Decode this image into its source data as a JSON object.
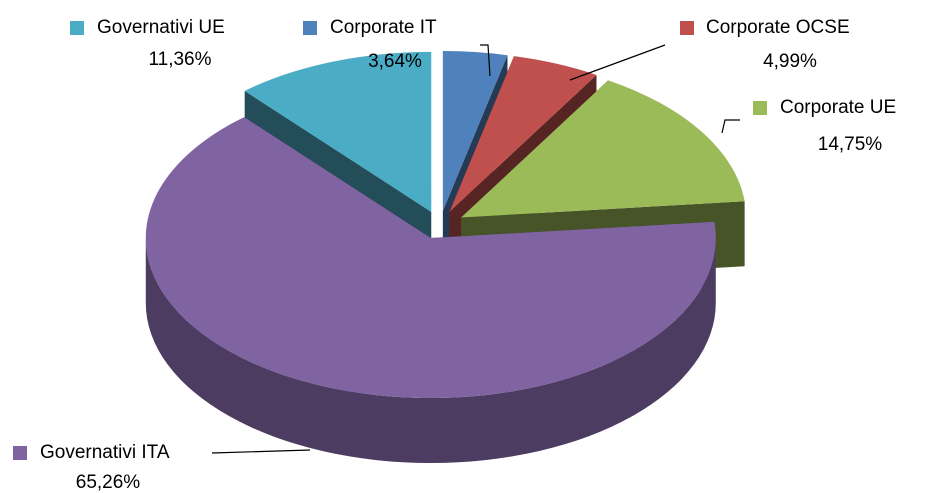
{
  "chart_data": {
    "type": "pie3d",
    "categories": [
      "Corporate IT",
      "Corporate OCSE",
      "Corporate UE",
      "Governativi ITA",
      "Governativi UE"
    ],
    "values": [
      3.64,
      4.99,
      14.75,
      65.26,
      11.36
    ],
    "value_labels": [
      "3,64%",
      "4,99%",
      "14,75%",
      "65,26%",
      "11,36%"
    ],
    "colors": [
      "#4f81bd",
      "#c0504d",
      "#9bbb59",
      "#8064a2",
      "#4bacc6"
    ]
  }
}
